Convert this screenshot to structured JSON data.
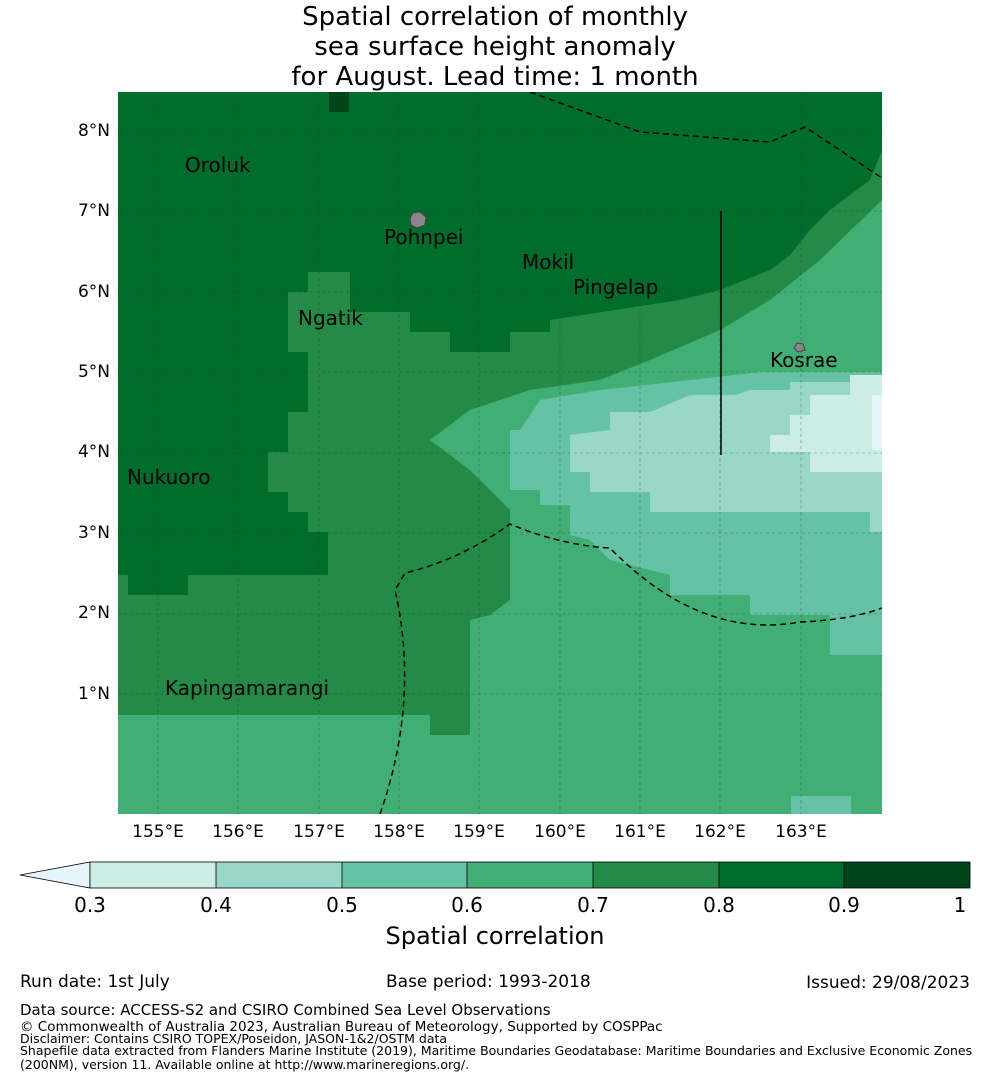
{
  "title": {
    "line1": "Spatial correlation of monthly",
    "line2": "sea surface height anomaly",
    "line3": "for August. Lead time: 1 month"
  },
  "map": {
    "lat_ticks": [
      "8°N",
      "7°N",
      "6°N",
      "5°N",
      "4°N",
      "3°N",
      "2°N",
      "1°N"
    ],
    "lon_ticks": [
      "155°E",
      "156°E",
      "157°E",
      "158°E",
      "159°E",
      "160°E",
      "161°E",
      "162°E",
      "163°E"
    ],
    "places": {
      "oroluk": "Oroluk",
      "pohnpei": "Pohnpei",
      "mokil": "Mokil",
      "pingelap": "Pingelap",
      "ngatik": "Ngatik",
      "kosrae": "Kosrae",
      "nukuoro": "Nukuoro",
      "kapingamarangi": "Kapingamarangi"
    },
    "colors": {
      "c0": "#e5f5f9",
      "c1": "#ccece6",
      "c2": "#99d8c9",
      "c3": "#66c2a4",
      "c4": "#41ae76",
      "c5": "#238b45",
      "c6": "#006d2c",
      "c7": "#00441b"
    }
  },
  "colorbar": {
    "ticks": [
      "0.3",
      "0.4",
      "0.5",
      "0.6",
      "0.7",
      "0.8",
      "0.9",
      "1"
    ],
    "label": "Spatial correlation"
  },
  "footer": {
    "run_date": "Run date: 1st July",
    "base_period": "Base period: 1993-2018",
    "issued": "Issued: 29/08/2023",
    "data_source": "Data source: ACCESS-S2 and CSIRO Combined Sea Level Observations",
    "copyright": "© Commonwealth of Australia 2023, Australian Bureau of Meteorology, Supported by COSPPac",
    "disclaimer": "Disclaimer: Contains CSIRO TOPEX/Poseidon, JASON-1&2/OSTM data",
    "shapefile1": "Shapefile data extracted from Flanders Marine Institute (2019), Maritime Boundaries Geodatabase: Maritime Boundaries and Exclusive Economic Zones",
    "shapefile2": "(200NM), version 11. Available online at http://www.marineregions.org/."
  }
}
